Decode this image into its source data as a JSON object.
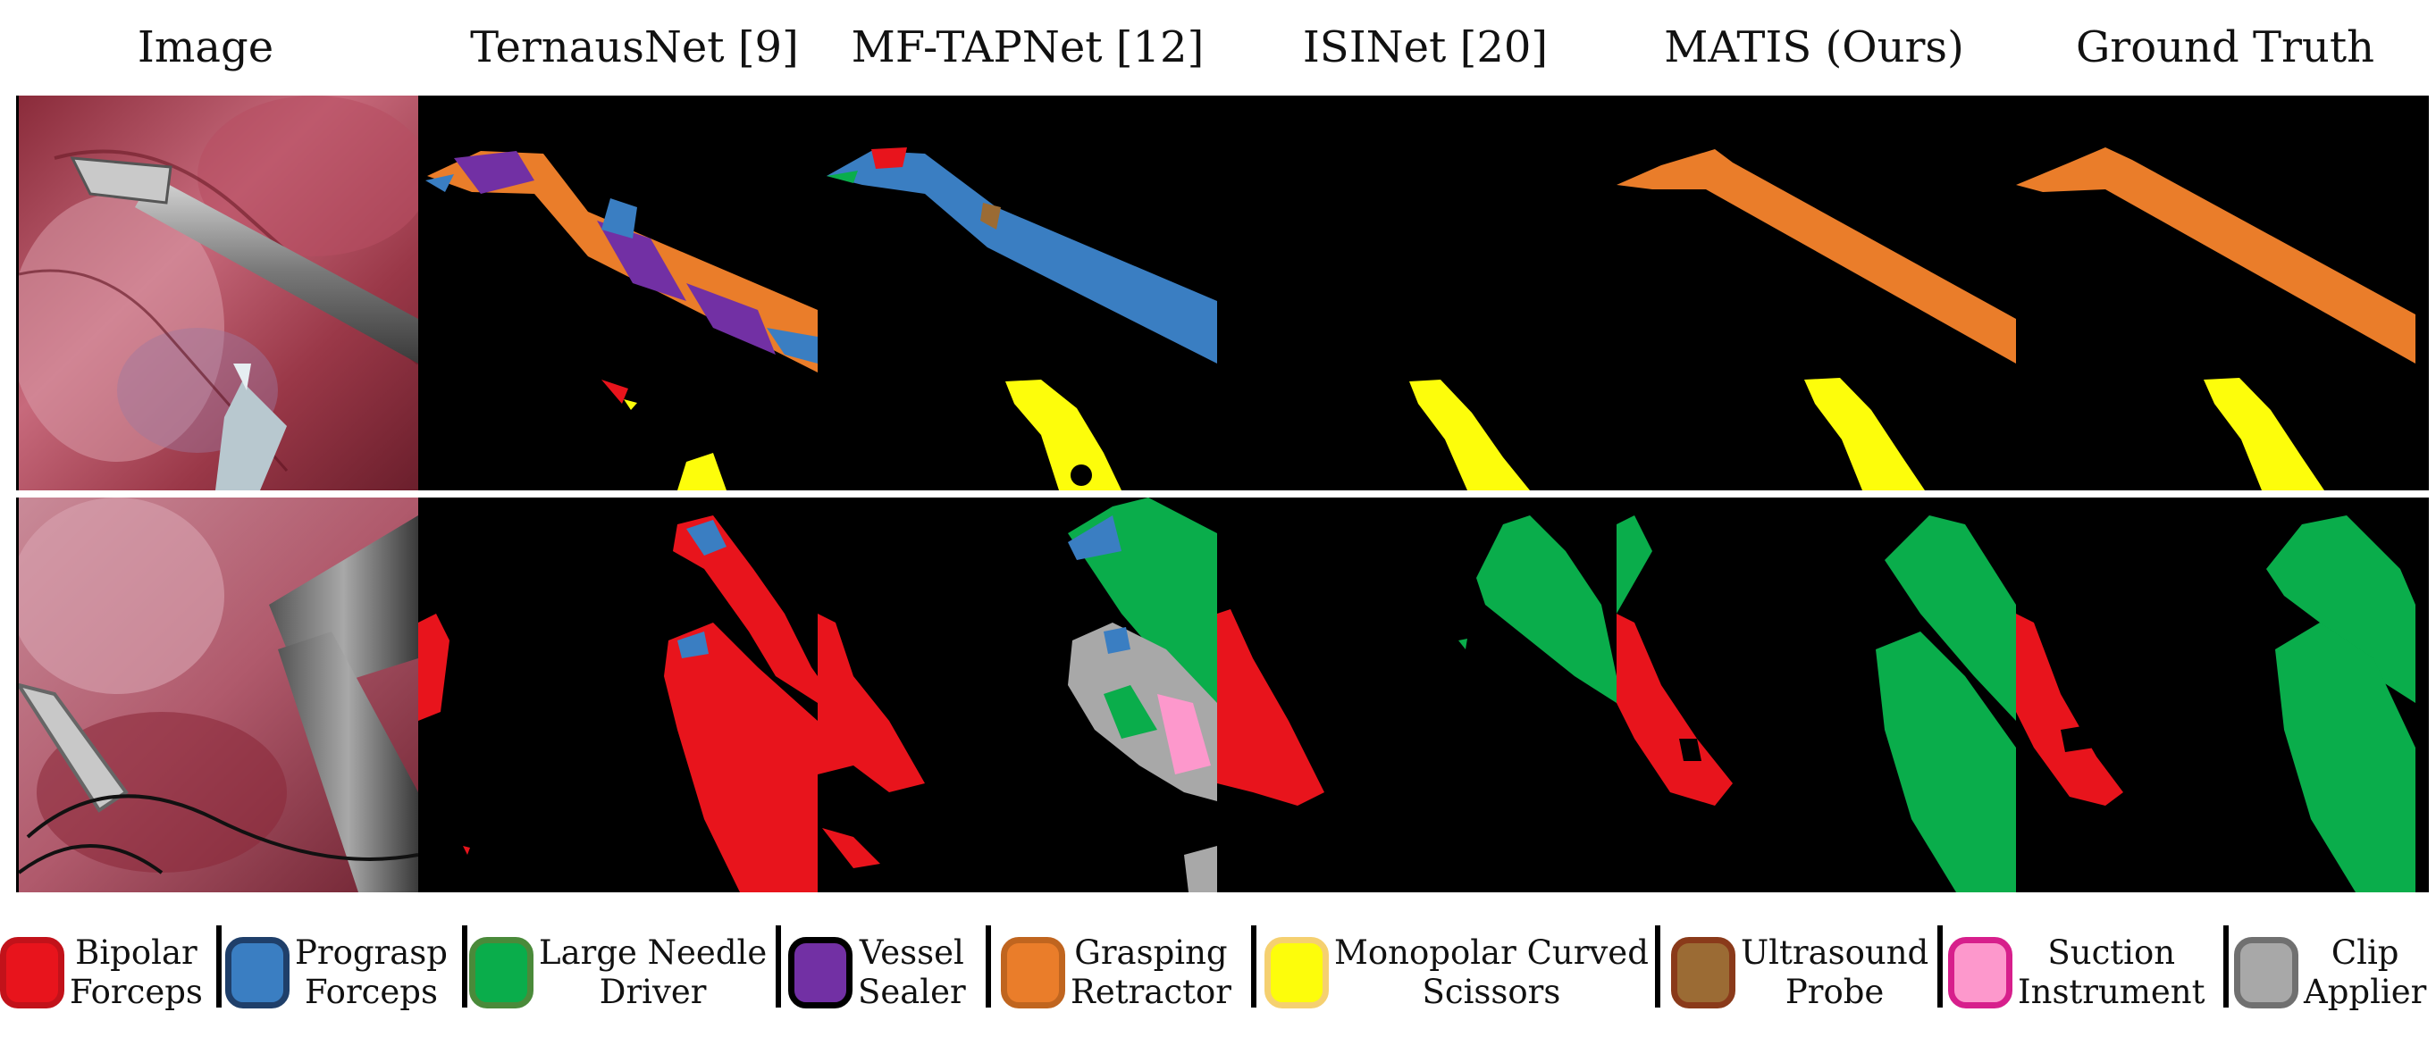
{
  "columns": {
    "image": "Image",
    "ternausnet": "TernausNet [9]",
    "mftapnet": "MF-TAPNet [12]",
    "isinet": "ISINet [20]",
    "matis": "MATIS (Ours)",
    "ground_truth": "Ground Truth"
  },
  "legend": [
    {
      "line1": "Bipolar",
      "line2": "Forceps",
      "fill": "#e8141c",
      "border": "#c2121a"
    },
    {
      "line1": "Prograsp",
      "line2": "Forceps",
      "fill": "#3a7ec2",
      "border": "#1f3f6a"
    },
    {
      "line1": "Large Needle",
      "line2": "Driver",
      "fill": "#0aad4b",
      "border": "#4a8a3a"
    },
    {
      "line1": "Vessel",
      "line2": "Sealer",
      "fill": "#7230a4",
      "border": "#000000"
    },
    {
      "line1": "Grasping",
      "line2": "Retractor",
      "fill": "#ea7d2a",
      "border": "#c0651f"
    },
    {
      "line1": "Monopolar Curved",
      "line2": "Scissors",
      "fill": "#fdfd0b",
      "border": "#f5d070"
    },
    {
      "line1": "Ultrasound",
      "line2": "Probe",
      "fill": "#9b6b34",
      "border": "#8a3a1a"
    },
    {
      "line1": "Suction",
      "line2": "Instrument",
      "fill": "#fd98cc",
      "border": "#d71f8c"
    },
    {
      "line1": "Clip",
      "line2": "Applier",
      "fill": "#a8a8a8",
      "border": "#707070"
    }
  ]
}
